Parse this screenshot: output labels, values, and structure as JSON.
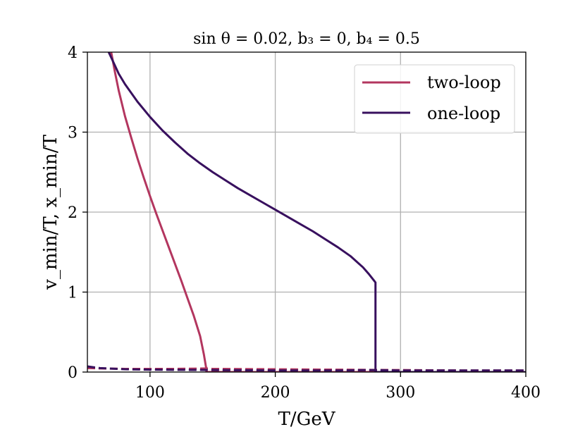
{
  "chart_data": {
    "type": "line",
    "title": "sin θ = 0.02, b₃ = 0, b₄ = 0.5",
    "xlabel": "T/GeV",
    "ylabel": "v_min/T, x_min/T",
    "xlim": [
      50,
      400
    ],
    "ylim": [
      0,
      4
    ],
    "xticks": [
      100,
      200,
      300,
      400
    ],
    "yticks": [
      0,
      1,
      2,
      3,
      4
    ],
    "grid": true,
    "legend_position": "top-right",
    "legend": [
      {
        "name": "two-loop",
        "color": "#b3365f"
      },
      {
        "name": "one-loop",
        "color": "#38105e"
      }
    ],
    "series": [
      {
        "name": "two-loop v_min/T",
        "style": "solid",
        "color": "#b3365f",
        "x": [
          69,
          72,
          75,
          80,
          85,
          90,
          95,
          100,
          105,
          110,
          115,
          120,
          125,
          130,
          135,
          140,
          143,
          144.5,
          145,
          145,
          400
        ],
        "y": [
          4.0,
          3.75,
          3.52,
          3.2,
          2.93,
          2.67,
          2.43,
          2.2,
          1.98,
          1.77,
          1.56,
          1.35,
          1.14,
          0.92,
          0.7,
          0.45,
          0.22,
          0.08,
          0.04,
          0.0,
          0.0
        ]
      },
      {
        "name": "one-loop v_min/T",
        "style": "solid",
        "color": "#38105e",
        "x": [
          67,
          70,
          75,
          80,
          90,
          100,
          110,
          120,
          130,
          140,
          150,
          160,
          170,
          180,
          190,
          200,
          210,
          220,
          230,
          240,
          250,
          260,
          265,
          270,
          275,
          279,
          280,
          280,
          400
        ],
        "y": [
          4.0,
          3.9,
          3.73,
          3.6,
          3.38,
          3.19,
          3.02,
          2.87,
          2.73,
          2.61,
          2.5,
          2.4,
          2.3,
          2.21,
          2.12,
          2.03,
          1.94,
          1.85,
          1.76,
          1.66,
          1.56,
          1.45,
          1.38,
          1.31,
          1.22,
          1.14,
          1.12,
          0.0,
          0.0
        ]
      },
      {
        "name": "two-loop x_min/T",
        "style": "dashed",
        "color": "#b3365f",
        "x": [
          50,
          60,
          80,
          100,
          120,
          145,
          150,
          200,
          250,
          300,
          350,
          400
        ],
        "y": [
          0.05,
          0.045,
          0.04,
          0.04,
          0.04,
          0.045,
          0.04,
          0.035,
          0.03,
          0.025,
          0.02,
          0.02
        ]
      },
      {
        "name": "one-loop x_min/T",
        "style": "dashed",
        "color": "#38105e",
        "x": [
          50,
          60,
          80,
          100,
          150,
          200,
          250,
          280,
          300,
          350,
          400
        ],
        "y": [
          0.07,
          0.05,
          0.035,
          0.03,
          0.025,
          0.02,
          0.02,
          0.025,
          0.02,
          0.02,
          0.02
        ]
      }
    ]
  }
}
